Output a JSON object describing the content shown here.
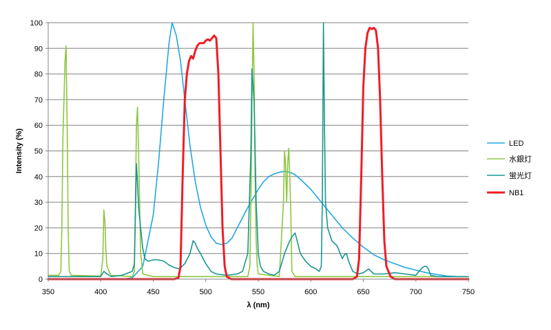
{
  "chart_data": {
    "type": "line",
    "xlabel": "λ (nm)",
    "ylabel": "Intensity (%)",
    "xlim": [
      350,
      750
    ],
    "ylim": [
      0,
      100
    ],
    "x_ticks": [
      350,
      400,
      450,
      500,
      550,
      600,
      650,
      700,
      750
    ],
    "y_ticks": [
      0,
      10,
      20,
      30,
      40,
      50,
      60,
      70,
      80,
      90,
      100
    ],
    "grid": "horizontal",
    "legend_position": "right",
    "series": [
      {
        "name": "LED",
        "color": "#1fa7e0",
        "points": [
          [
            350,
            0
          ],
          [
            420,
            0
          ],
          [
            430,
            0.5
          ],
          [
            440,
            5
          ],
          [
            450,
            25
          ],
          [
            455,
            45
          ],
          [
            460,
            70
          ],
          [
            465,
            92
          ],
          [
            468,
            100
          ],
          [
            472,
            95
          ],
          [
            476,
            85
          ],
          [
            480,
            70
          ],
          [
            485,
            52
          ],
          [
            490,
            38
          ],
          [
            495,
            28
          ],
          [
            500,
            21
          ],
          [
            505,
            16.5
          ],
          [
            510,
            14
          ],
          [
            515,
            13.5
          ],
          [
            520,
            14
          ],
          [
            525,
            16
          ],
          [
            530,
            20
          ],
          [
            540,
            28
          ],
          [
            550,
            35
          ],
          [
            555,
            38
          ],
          [
            560,
            40
          ],
          [
            565,
            41
          ],
          [
            570,
            41.7
          ],
          [
            575,
            42
          ],
          [
            580,
            41.7
          ],
          [
            585,
            40.7
          ],
          [
            590,
            39
          ],
          [
            600,
            35
          ],
          [
            610,
            30
          ],
          [
            620,
            25
          ],
          [
            630,
            20
          ],
          [
            640,
            16
          ],
          [
            650,
            12.5
          ],
          [
            660,
            9.5
          ],
          [
            670,
            7.5
          ],
          [
            680,
            6
          ],
          [
            690,
            4.5
          ],
          [
            700,
            3.5
          ],
          [
            710,
            2.5
          ],
          [
            720,
            1.8
          ],
          [
            730,
            1.2
          ],
          [
            740,
            1
          ],
          [
            750,
            1
          ]
        ]
      },
      {
        "name": "水銀灯",
        "color": "#8cc63f",
        "points": [
          [
            350,
            1.5
          ],
          [
            360,
            1.5
          ],
          [
            362,
            3
          ],
          [
            363,
            20
          ],
          [
            364,
            55
          ],
          [
            365,
            70
          ],
          [
            366,
            85
          ],
          [
            367,
            91
          ],
          [
            368,
            60
          ],
          [
            369,
            20
          ],
          [
            370,
            3
          ],
          [
            372,
            1.5
          ],
          [
            400,
            1.2
          ],
          [
            402,
            8
          ],
          [
            403,
            27
          ],
          [
            404,
            22
          ],
          [
            405,
            10
          ],
          [
            406,
            5
          ],
          [
            407,
            4
          ],
          [
            408,
            3
          ],
          [
            410,
            1.5
          ],
          [
            430,
            1
          ],
          [
            432,
            3
          ],
          [
            433,
            30
          ],
          [
            434,
            60
          ],
          [
            435,
            67
          ],
          [
            436,
            50
          ],
          [
            437,
            30
          ],
          [
            438,
            10
          ],
          [
            440,
            2
          ],
          [
            450,
            1
          ],
          [
            540,
            1
          ],
          [
            542,
            5
          ],
          [
            543,
            30
          ],
          [
            544,
            65
          ],
          [
            545,
            100
          ],
          [
            546,
            80
          ],
          [
            547,
            40
          ],
          [
            548,
            15
          ],
          [
            549,
            5
          ],
          [
            550,
            2
          ],
          [
            570,
            1
          ],
          [
            574,
            30
          ],
          [
            575,
            50
          ],
          [
            576,
            45
          ],
          [
            577,
            30
          ],
          [
            578,
            45
          ],
          [
            579,
            51
          ],
          [
            580,
            40
          ],
          [
            581,
            25
          ],
          [
            582,
            3
          ],
          [
            585,
            1
          ],
          [
            600,
            1
          ],
          [
            650,
            1
          ],
          [
            750,
            1
          ]
        ]
      },
      {
        "name": "蛍光灯",
        "color": "#18958e",
        "points": [
          [
            350,
            1
          ],
          [
            400,
            1
          ],
          [
            403,
            3
          ],
          [
            406,
            2
          ],
          [
            410,
            1
          ],
          [
            420,
            1.5
          ],
          [
            430,
            3
          ],
          [
            432,
            6
          ],
          [
            433,
            25
          ],
          [
            434,
            45
          ],
          [
            435,
            38
          ],
          [
            436,
            28
          ],
          [
            438,
            20
          ],
          [
            440,
            12
          ],
          [
            442,
            8
          ],
          [
            445,
            7
          ],
          [
            450,
            7.5
          ],
          [
            455,
            7.5
          ],
          [
            460,
            7
          ],
          [
            465,
            5.5
          ],
          [
            470,
            4.5
          ],
          [
            475,
            4
          ],
          [
            480,
            6
          ],
          [
            485,
            10
          ],
          [
            488,
            15
          ],
          [
            490,
            14
          ],
          [
            492,
            12
          ],
          [
            495,
            10
          ],
          [
            500,
            6
          ],
          [
            505,
            3
          ],
          [
            510,
            2
          ],
          [
            520,
            1.5
          ],
          [
            530,
            2
          ],
          [
            535,
            3
          ],
          [
            540,
            10
          ],
          [
            543,
            50
          ],
          [
            544,
            82
          ],
          [
            546,
            70
          ],
          [
            548,
            30
          ],
          [
            550,
            10
          ],
          [
            552,
            5
          ],
          [
            555,
            3
          ],
          [
            560,
            2
          ],
          [
            565,
            1.5
          ],
          [
            570,
            3
          ],
          [
            575,
            10
          ],
          [
            580,
            15
          ],
          [
            583,
            17
          ],
          [
            585,
            18
          ],
          [
            587,
            15
          ],
          [
            590,
            10
          ],
          [
            595,
            7
          ],
          [
            600,
            5
          ],
          [
            605,
            4
          ],
          [
            608,
            3
          ],
          [
            610,
            5
          ],
          [
            611,
            30
          ],
          [
            612,
            100
          ],
          [
            613,
            60
          ],
          [
            614,
            30
          ],
          [
            616,
            20
          ],
          [
            620,
            15
          ],
          [
            625,
            13
          ],
          [
            628,
            10
          ],
          [
            630,
            8
          ],
          [
            632,
            9.5
          ],
          [
            634,
            10
          ],
          [
            636,
            7
          ],
          [
            640,
            3
          ],
          [
            645,
            2
          ],
          [
            650,
            2.5
          ],
          [
            655,
            4
          ],
          [
            660,
            2
          ],
          [
            670,
            2
          ],
          [
            680,
            2.5
          ],
          [
            690,
            2
          ],
          [
            700,
            1.5
          ],
          [
            705,
            4
          ],
          [
            708,
            5
          ],
          [
            710,
            5
          ],
          [
            712,
            4
          ],
          [
            714,
            1.5
          ],
          [
            720,
            1
          ],
          [
            750,
            1
          ]
        ]
      },
      {
        "name": "NB1",
        "color": "#ee1c25",
        "points": [
          [
            350,
            0
          ],
          [
            470,
            0
          ],
          [
            474,
            0.5
          ],
          [
            476,
            5
          ],
          [
            478,
            40
          ],
          [
            480,
            70
          ],
          [
            482,
            80
          ],
          [
            484,
            85
          ],
          [
            486,
            87
          ],
          [
            488,
            86
          ],
          [
            490,
            89
          ],
          [
            492,
            91
          ],
          [
            494,
            92
          ],
          [
            496,
            92
          ],
          [
            498,
            92
          ],
          [
            500,
            93
          ],
          [
            502,
            93.5
          ],
          [
            504,
            93
          ],
          [
            506,
            94
          ],
          [
            508,
            95
          ],
          [
            510,
            94
          ],
          [
            512,
            80
          ],
          [
            514,
            50
          ],
          [
            516,
            20
          ],
          [
            518,
            5
          ],
          [
            520,
            1
          ],
          [
            524,
            0
          ],
          [
            640,
            0
          ],
          [
            644,
            1
          ],
          [
            646,
            8
          ],
          [
            648,
            40
          ],
          [
            650,
            75
          ],
          [
            652,
            90
          ],
          [
            654,
            96
          ],
          [
            656,
            98
          ],
          [
            658,
            97.5
          ],
          [
            660,
            98
          ],
          [
            662,
            97
          ],
          [
            664,
            90
          ],
          [
            666,
            70
          ],
          [
            668,
            40
          ],
          [
            670,
            15
          ],
          [
            672,
            5
          ],
          [
            676,
            1
          ],
          [
            680,
            0
          ],
          [
            750,
            0
          ]
        ]
      }
    ]
  }
}
